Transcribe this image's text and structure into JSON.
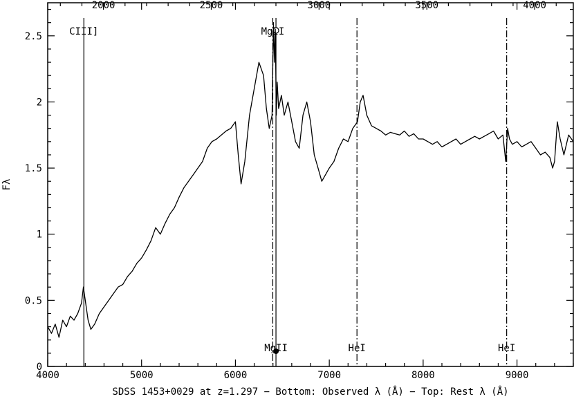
{
  "chart_data": {
    "type": "line",
    "xlabel": "SDSS 1453+0029 at z=1.297 − Bottom: Observed λ (Å) − Top: Rest λ (Å)",
    "ylabel": "Fλ",
    "xlim": [
      4000,
      9600
    ],
    "ylim": [
      0,
      2.75
    ],
    "x_ticks": [
      4000,
      5000,
      6000,
      7000,
      8000,
      9000
    ],
    "y_ticks": [
      0,
      0.5,
      1,
      1.5,
      2,
      2.5
    ],
    "y_tick_labels": [
      "0",
      "0.5",
      "1",
      "1.5",
      "2",
      "2.5"
    ],
    "top_axis": {
      "redshift": 1.297,
      "ticks": [
        2000,
        2500,
        3000,
        3500,
        4000
      ]
    },
    "series": [
      {
        "x": [
          4000,
          4040,
          4080,
          4120,
          4160,
          4200,
          4240,
          4280,
          4320,
          4360,
          4380,
          4400,
          4430,
          4460,
          4500,
          4550,
          4600,
          4650,
          4700,
          4750,
          4800,
          4850,
          4900,
          4950,
          5000,
          5050,
          5100,
          5150,
          5200,
          5250,
          5300,
          5350,
          5400,
          5450,
          5500,
          5550,
          5600,
          5650,
          5700,
          5750,
          5800,
          5850,
          5900,
          5950,
          6000,
          6030,
          6060,
          6100,
          6150,
          6200,
          6250,
          6300,
          6330,
          6360,
          6390,
          6405,
          6415,
          6425,
          6435,
          6445,
          6460,
          6490,
          6520,
          6560,
          6600,
          6640,
          6680,
          6720,
          6760,
          6800,
          6840,
          6880,
          6920,
          6960,
          7000,
          7050,
          7100,
          7150,
          7200,
          7250,
          7300,
          7330,
          7360,
          7400,
          7450,
          7500,
          7550,
          7600,
          7650,
          7700,
          7750,
          7800,
          7850,
          7900,
          7950,
          8000,
          8050,
          8100,
          8150,
          8200,
          8250,
          8300,
          8350,
          8400,
          8450,
          8500,
          8550,
          8600,
          8650,
          8700,
          8750,
          8800,
          8850,
          8880,
          8900,
          8920,
          8950,
          9000,
          9050,
          9100,
          9150,
          9200,
          9250,
          9300,
          9350,
          9380,
          9400,
          9430,
          9460,
          9500,
          9550,
          9600
        ],
        "y": [
          0.3,
          0.25,
          0.32,
          0.22,
          0.35,
          0.3,
          0.38,
          0.35,
          0.4,
          0.48,
          0.6,
          0.5,
          0.35,
          0.28,
          0.32,
          0.4,
          0.45,
          0.5,
          0.55,
          0.6,
          0.62,
          0.68,
          0.72,
          0.78,
          0.82,
          0.88,
          0.95,
          1.05,
          1.0,
          1.08,
          1.15,
          1.2,
          1.28,
          1.35,
          1.4,
          1.45,
          1.5,
          1.55,
          1.65,
          1.7,
          1.72,
          1.75,
          1.78,
          1.8,
          1.85,
          1.6,
          1.38,
          1.55,
          1.9,
          2.1,
          2.3,
          2.2,
          1.95,
          1.8,
          1.9,
          2.6,
          2.3,
          2.55,
          1.9,
          2.15,
          1.95,
          2.05,
          1.9,
          2.0,
          1.85,
          1.7,
          1.65,
          1.9,
          2.0,
          1.85,
          1.6,
          1.5,
          1.4,
          1.45,
          1.5,
          1.55,
          1.65,
          1.72,
          1.7,
          1.8,
          1.85,
          2.0,
          2.05,
          1.9,
          1.82,
          1.8,
          1.78,
          1.75,
          1.77,
          1.76,
          1.75,
          1.78,
          1.74,
          1.76,
          1.72,
          1.72,
          1.7,
          1.68,
          1.7,
          1.66,
          1.68,
          1.7,
          1.72,
          1.68,
          1.7,
          1.72,
          1.74,
          1.72,
          1.74,
          1.76,
          1.78,
          1.72,
          1.75,
          1.55,
          1.8,
          1.72,
          1.68,
          1.7,
          1.66,
          1.68,
          1.7,
          1.65,
          1.6,
          1.62,
          1.58,
          1.5,
          1.55,
          1.85,
          1.72,
          1.6,
          1.75,
          1.7
        ]
      }
    ],
    "reference_lines": [
      {
        "x": 4385,
        "label": "CIII]",
        "label_position": "top",
        "style": "solid"
      },
      {
        "x": 6398,
        "label": "MgII",
        "label_position": "top",
        "style": "dashdot"
      },
      {
        "x": 6432,
        "label": "MgII",
        "label_position": "bottom",
        "style": "solid",
        "marker": "circle"
      },
      {
        "x": 7295,
        "label": "HeI",
        "label_position": "bottom",
        "style": "dashdot"
      },
      {
        "x": 8890,
        "label": "HeI",
        "label_position": "bottom",
        "style": "dashdot"
      }
    ],
    "grid": false,
    "legend": "none"
  }
}
